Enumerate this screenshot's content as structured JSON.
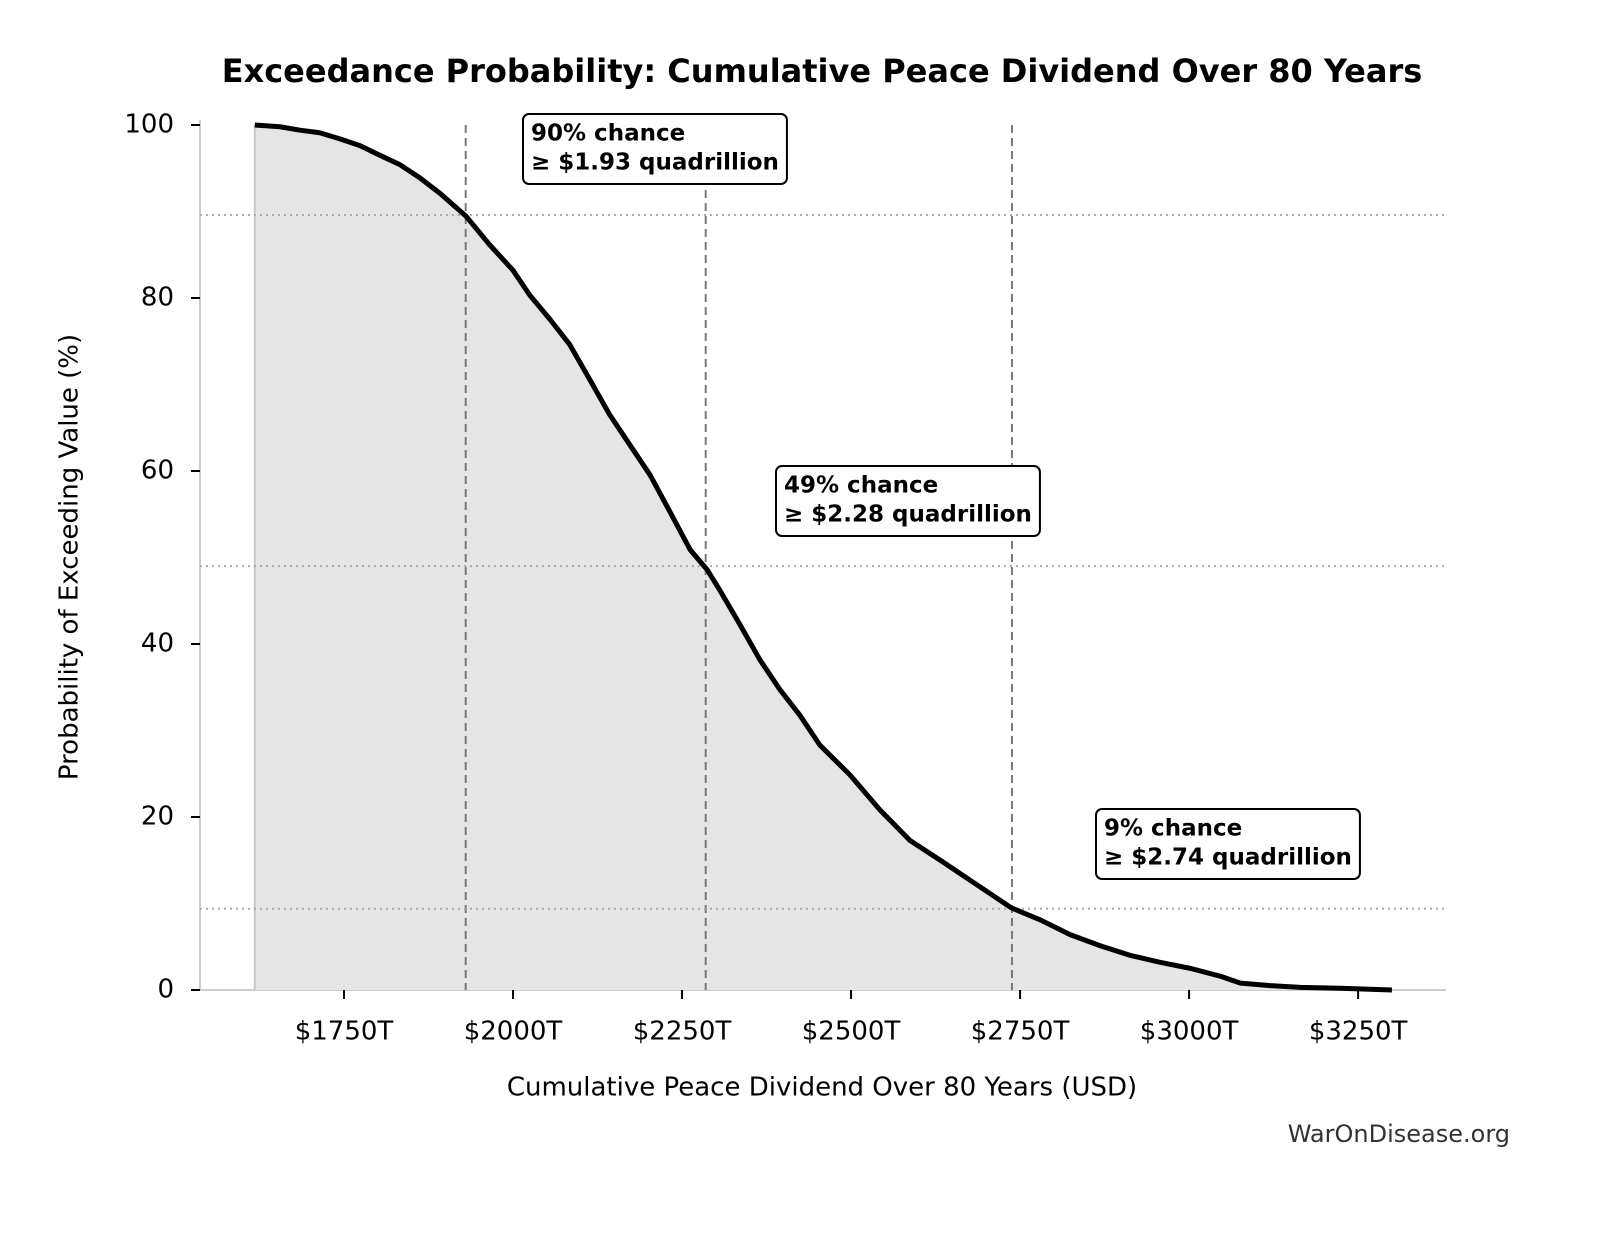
{
  "chart_data": {
    "type": "line",
    "title": "Exceedance Probability: Cumulative Peace Dividend Over 80 Years",
    "x_label": "Cumulative Peace Dividend Over 80 Years (USD)",
    "y_label": "Probability of Exceeding Value (%)",
    "credit": "WarOnDisease.org",
    "xlim": [
      1537,
      3380
    ],
    "ylim": [
      0,
      100
    ],
    "xticks": [
      {
        "value": 1750,
        "label": "$1750T"
      },
      {
        "value": 2000,
        "label": "$2000T"
      },
      {
        "value": 2250,
        "label": "$2250T"
      },
      {
        "value": 2500,
        "label": "$2500T"
      },
      {
        "value": 2750,
        "label": "$2750T"
      },
      {
        "value": 3000,
        "label": "$3000T"
      },
      {
        "value": 3250,
        "label": "$3250T"
      }
    ],
    "yticks": [
      0,
      20,
      40,
      60,
      80,
      100
    ],
    "fill": true,
    "series": [
      {
        "color": "#000000",
        "x": [
          1618,
          1655,
          1685,
          1714,
          1744,
          1774,
          1803,
          1833,
          1862,
          1892,
          1930,
          1966,
          2000,
          2025,
          2055,
          2084,
          2114,
          2143,
          2173,
          2203,
          2232,
          2262,
          2287,
          2306,
          2336,
          2365,
          2395,
          2424,
          2454,
          2498,
          2543,
          2587,
          2632,
          2676,
          2737,
          2780,
          2824,
          2869,
          2913,
          2957,
          3002,
          3046,
          3076,
          3120,
          3165,
          3224,
          3300
        ],
        "values": [
          100,
          99.8,
          99.4,
          99.1,
          98.4,
          97.6,
          96.5,
          95.4,
          93.9,
          92.1,
          89.5,
          86.1,
          83.2,
          80.3,
          77.5,
          74.6,
          70.5,
          66.5,
          63,
          59.5,
          55.3,
          50.9,
          48.6,
          46.2,
          42.2,
          38.2,
          34.7,
          31.8,
          28.3,
          24.9,
          20.8,
          17.3,
          15,
          12.7,
          9.5,
          8.1,
          6.4,
          5.1,
          4,
          3.2,
          2.5,
          1.6,
          0.8,
          0.5,
          0.3,
          0.2,
          0
        ]
      }
    ],
    "annotations": [
      {
        "x": 1930,
        "y": 89.6,
        "lines": [
          "90% chance",
          "≥ $1.93 quadrillion"
        ]
      },
      {
        "x": 2285,
        "y": 49,
        "lines": [
          "49% chance",
          "≥ $2.28 quadrillion"
        ]
      },
      {
        "x": 2738,
        "y": 9.4,
        "lines": [
          "9% chance",
          "≥ $2.74 quadrillion"
        ]
      }
    ]
  }
}
